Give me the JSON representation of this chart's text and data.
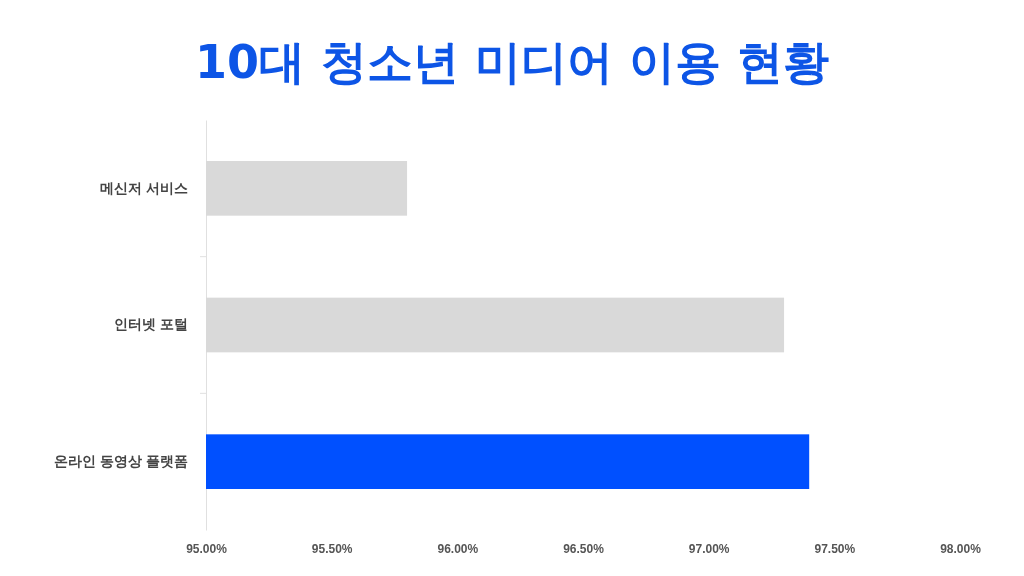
{
  "chart_data": {
    "type": "bar",
    "orientation": "horizontal",
    "title": "10대 청소년 미디어 이용 현황",
    "categories": [
      "메신저 서비스",
      "인터넷 포털",
      "온라인 동영상 플랫폼"
    ],
    "values": [
      95.8,
      97.3,
      97.4
    ],
    "colors": [
      "#d9d9d9",
      "#d9d9d9",
      "#0050ff"
    ],
    "xlim": [
      95,
      98
    ],
    "xticks": [
      {
        "value": 95,
        "label": "95.00%"
      },
      {
        "value": 95.5,
        "label": "95.50%"
      },
      {
        "value": 96,
        "label": "96.00%"
      },
      {
        "value": 96.5,
        "label": "96.50%"
      },
      {
        "value": 97,
        "label": "97.00%"
      },
      {
        "value": 97.5,
        "label": "97.50%"
      },
      {
        "value": 98,
        "label": "98.00%"
      }
    ],
    "grid": false
  }
}
